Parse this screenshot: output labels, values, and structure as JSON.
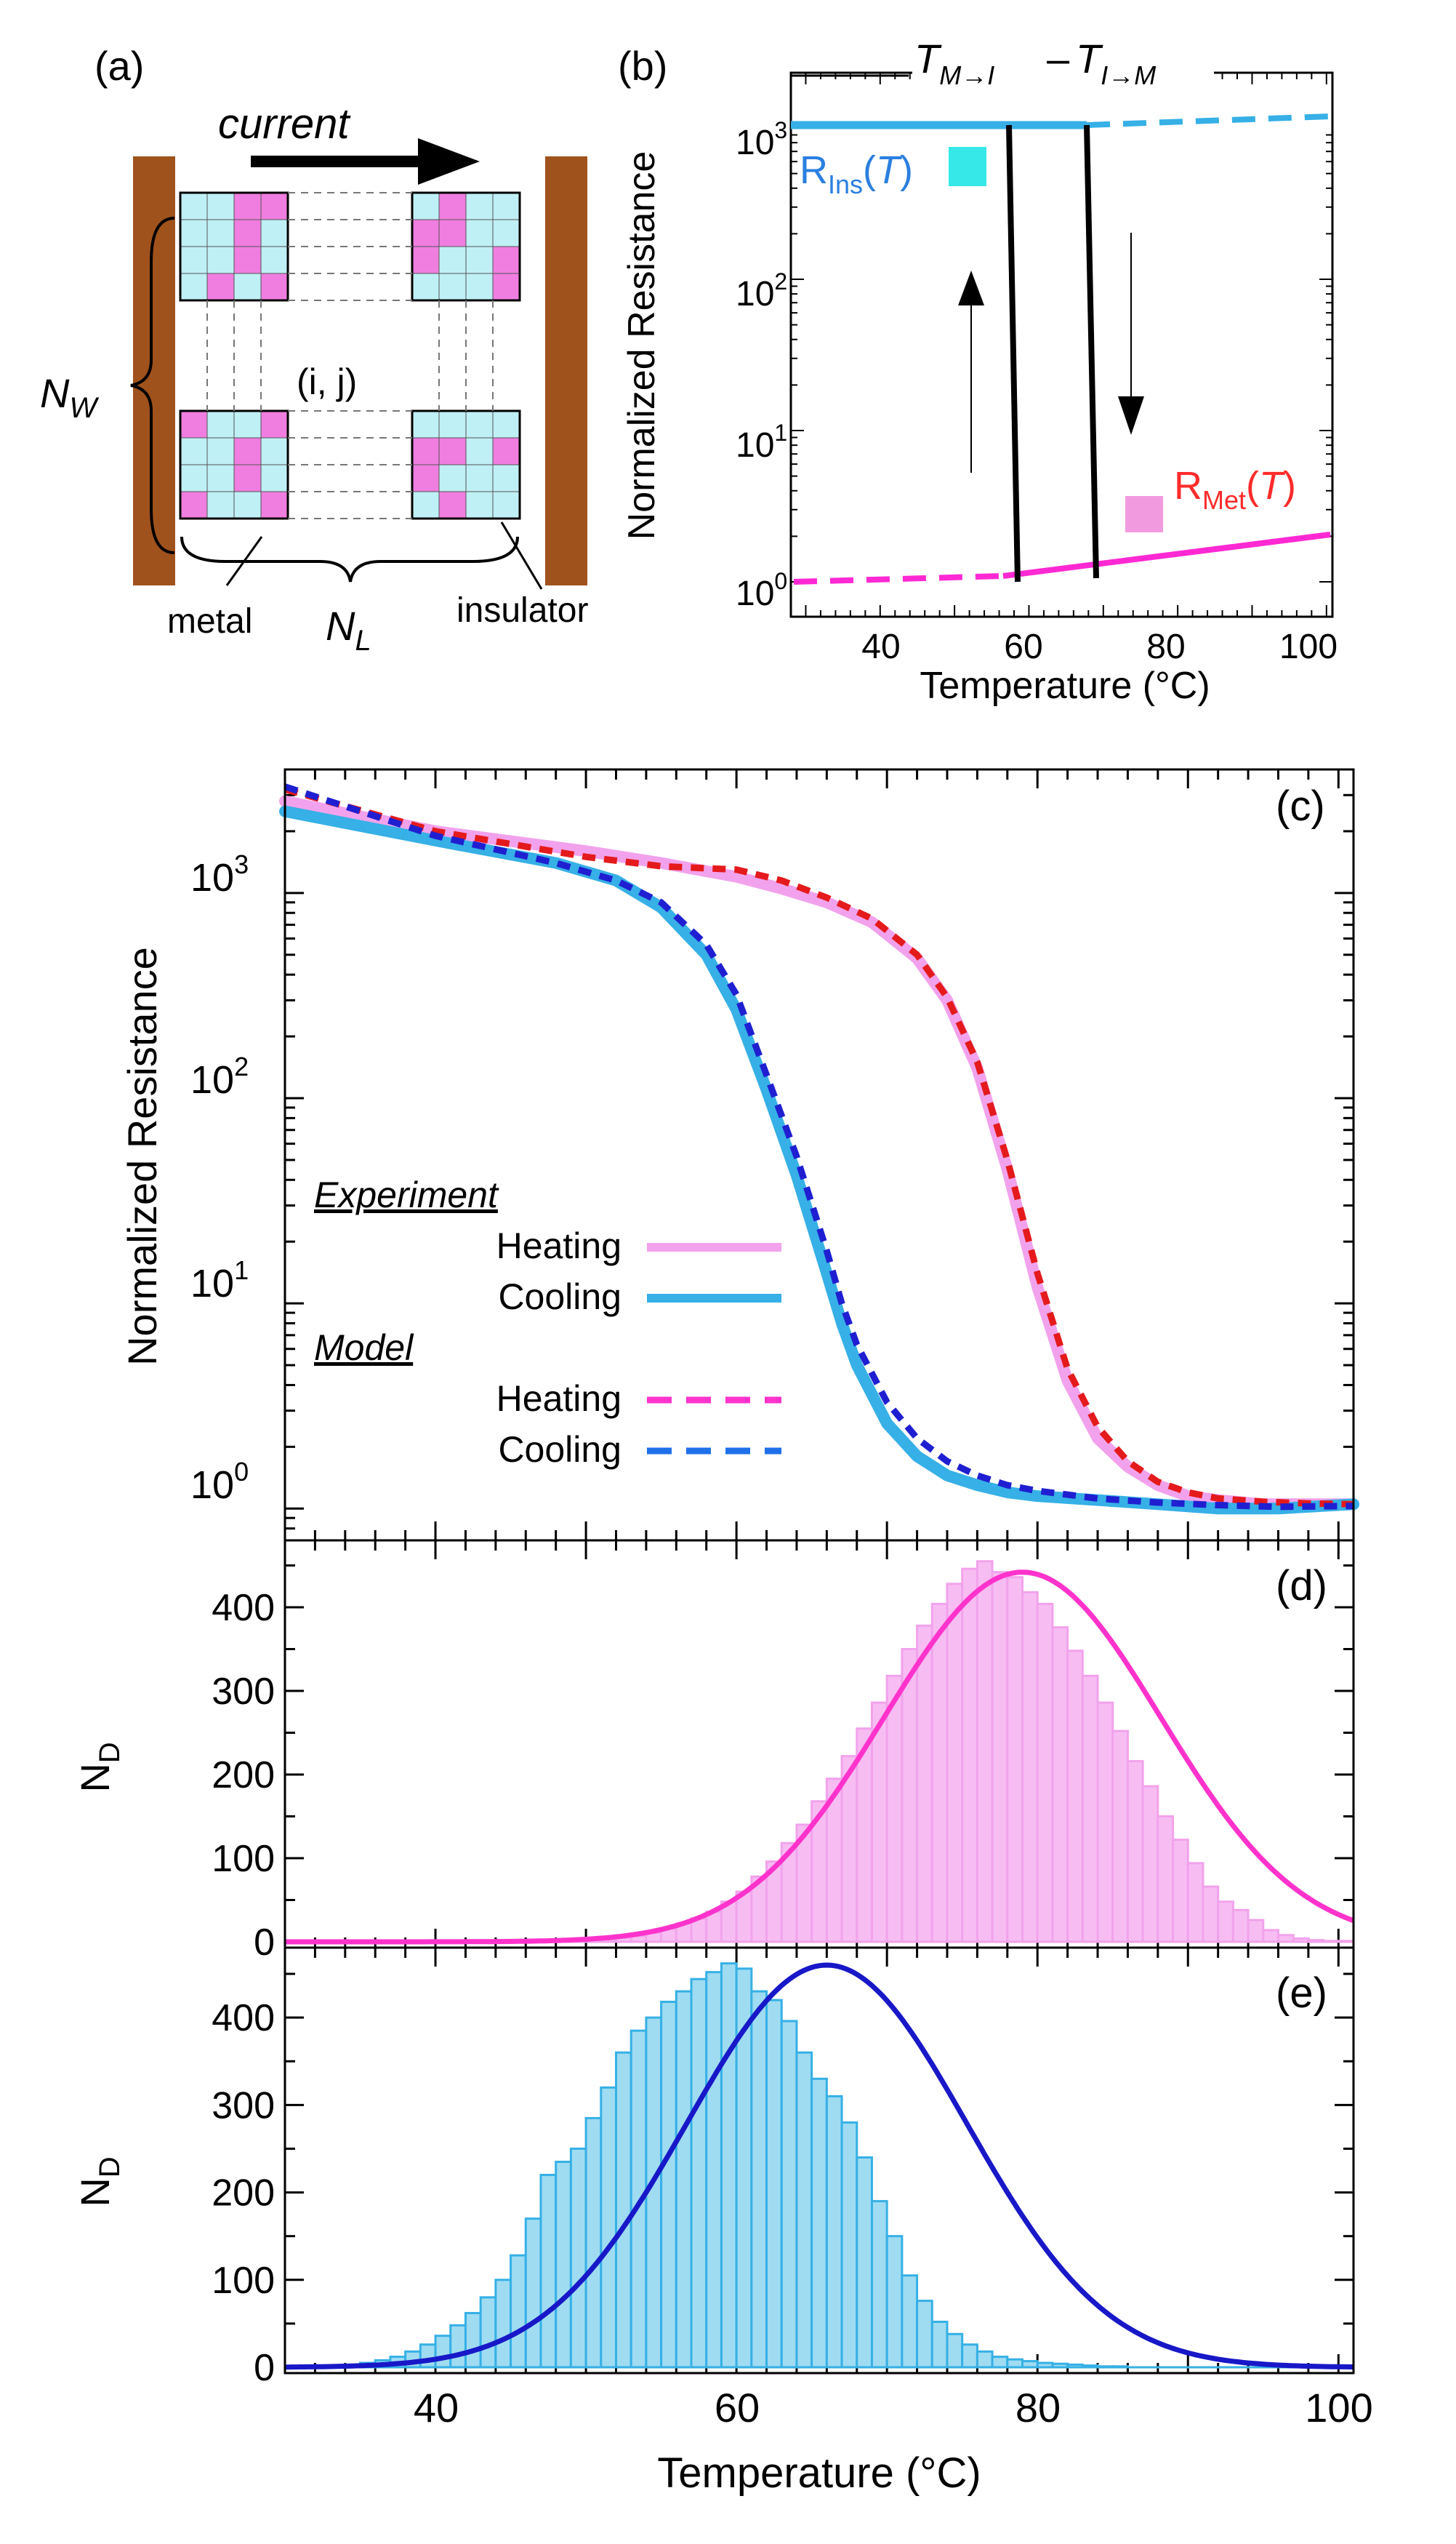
{
  "figure": {
    "colors": {
      "pink": "#f2a2ec",
      "pink_fill": "#f7bdf3",
      "magenta": "#ff33cc",
      "hot_pink": "#ff29d4",
      "red": "#e41a1c",
      "cyan": "#36b0e6",
      "cyan_fill": "#9fdcf2",
      "blue": "#1f1fd1",
      "dark_blue": "#1818c8",
      "cell_cyan": "#bff0f5",
      "cell_pink": "#f07ee0",
      "electrode": "#a0521d",
      "ins_label": "#2a7fe0",
      "met_label": "#ff2b2b"
    }
  },
  "panel_a": {
    "label": "(a)",
    "current": "current",
    "nw": "N",
    "nw_sub": "W",
    "nl": "N",
    "nl_sub": "L",
    "cell": "(i, j)",
    "metal": "metal",
    "insulator": "insulator"
  },
  "panel_b": {
    "label": "(b)",
    "ylabel": "Normalized Resistance",
    "xlabel": "Temperature (°C)",
    "xticks": [
      "40",
      "60",
      "80",
      "100"
    ],
    "yticks": [
      {
        "base": "10",
        "exp": "3"
      },
      {
        "base": "10",
        "exp": "2"
      },
      {
        "base": "10",
        "exp": "1"
      },
      {
        "base": "10",
        "exp": "0"
      }
    ],
    "t_mi": "T",
    "t_mi_sub": "M→I",
    "t_im": "T",
    "t_im_sub": "I→M",
    "dash_mid": "–",
    "r_ins": "R",
    "r_ins_sub": "Ins",
    "r_met": "R",
    "r_met_sub": "Met",
    "t_var": "T"
  },
  "chart_data": [
    {
      "type": "line",
      "id": "c",
      "title": "(c)",
      "xlabel": "",
      "ylabel": "Normalized Resistance",
      "yscale": "log",
      "xlim": [
        30,
        101
      ],
      "ylim": [
        0.7,
        4000
      ],
      "yticks": [
        {
          "base": "10",
          "exp": "3"
        },
        {
          "base": "10",
          "exp": "2"
        },
        {
          "base": "10",
          "exp": "1"
        },
        {
          "base": "10",
          "exp": "0"
        }
      ],
      "legend": {
        "experiment": "Experiment",
        "model": "Model",
        "heating": "Heating",
        "cooling": "Cooling"
      },
      "series": [
        {
          "name": "Experiment Heating",
          "style": "solid",
          "color": "#f2a2ec",
          "x": [
            30,
            40,
            50,
            55,
            60,
            63,
            66,
            69,
            72,
            74,
            76,
            78,
            80,
            82,
            84,
            86,
            88,
            90,
            92,
            95,
            98,
            101
          ],
          "y": [
            2800,
            2000,
            1600,
            1400,
            1200,
            1050,
            900,
            720,
            480,
            300,
            140,
            45,
            12,
            4.2,
            2.2,
            1.6,
            1.3,
            1.15,
            1.1,
            1.05,
            1.05,
            1.05
          ]
        },
        {
          "name": "Experiment Cooling",
          "style": "solid",
          "color": "#36b0e6",
          "x": [
            30,
            40,
            48,
            52,
            55,
            58,
            60,
            62,
            64,
            66,
            67,
            68,
            70,
            72,
            74,
            76,
            78,
            80,
            84,
            88,
            92,
            96,
            101
          ],
          "y": [
            2500,
            1800,
            1400,
            1150,
            850,
            500,
            270,
            110,
            42,
            14,
            8,
            5,
            2.6,
            1.8,
            1.45,
            1.3,
            1.2,
            1.15,
            1.1,
            1.05,
            1.0,
            1.0,
            1.05
          ]
        },
        {
          "name": "Model Heating",
          "style": "dash",
          "color": "#e41a1c",
          "x": [
            30,
            40,
            50,
            55,
            60,
            63,
            66,
            69,
            72,
            74,
            76,
            78,
            80,
            82,
            84,
            86,
            88,
            90,
            92,
            95,
            98,
            101
          ],
          "y": [
            3200,
            2000,
            1500,
            1350,
            1300,
            1150,
            950,
            750,
            500,
            310,
            150,
            50,
            14,
            4.8,
            2.5,
            1.7,
            1.35,
            1.2,
            1.12,
            1.08,
            1.06,
            1.05
          ]
        },
        {
          "name": "Model Cooling",
          "style": "dash",
          "color": "#1f1fd1",
          "x": [
            30,
            40,
            48,
            52,
            55,
            58,
            60,
            62,
            64,
            66,
            67,
            68,
            70,
            72,
            74,
            76,
            78,
            80,
            84,
            88,
            92,
            96,
            101
          ],
          "y": [
            3300,
            1900,
            1400,
            1150,
            900,
            560,
            320,
            130,
            52,
            18,
            10,
            6.3,
            3.3,
            2.2,
            1.7,
            1.45,
            1.3,
            1.22,
            1.12,
            1.07,
            1.04,
            1.02,
            1.03
          ]
        }
      ]
    },
    {
      "type": "bar",
      "id": "d",
      "title": "(d)",
      "ylabel": "N",
      "ylabel_sub": "D",
      "xlim": [
        30,
        101
      ],
      "ylim": [
        0,
        480
      ],
      "yticks": [
        "0",
        "100",
        "200",
        "300",
        "400"
      ],
      "bin_start": 30,
      "bin_width": 1,
      "values": [
        0,
        0,
        0,
        0,
        0,
        0,
        0,
        0,
        0,
        0,
        0,
        0,
        0,
        0,
        0,
        0,
        0,
        0,
        0,
        0,
        2,
        3,
        5,
        7,
        11,
        16,
        22,
        28,
        36,
        48,
        60,
        78,
        96,
        118,
        140,
        168,
        195,
        222,
        255,
        286,
        318,
        350,
        378,
        404,
        428,
        446,
        455,
        442,
        436,
        418,
        404,
        376,
        348,
        318,
        286,
        252,
        216,
        186,
        150,
        122,
        94,
        66,
        48,
        38,
        26,
        14,
        8,
        4,
        2,
        1,
        1
      ],
      "fit": {
        "mu": 79,
        "sigma": 9.2,
        "amp": 442,
        "color": "#ff33cc"
      }
    },
    {
      "type": "bar",
      "id": "e",
      "title": "(e)",
      "ylabel": "N",
      "ylabel_sub": "D",
      "xlabel": "Temperature (°C)",
      "xlim": [
        30,
        101
      ],
      "ylim": [
        0,
        480
      ],
      "xticks": [
        "40",
        "60",
        "80",
        "100"
      ],
      "yticks": [
        "0",
        "100",
        "200",
        "300",
        "400"
      ],
      "bin_start": 30,
      "bin_width": 1,
      "values": [
        0,
        0,
        1,
        2,
        3,
        5,
        8,
        12,
        18,
        26,
        36,
        48,
        62,
        80,
        100,
        128,
        170,
        220,
        235,
        250,
        285,
        320,
        360,
        385,
        400,
        418,
        430,
        444,
        452,
        462,
        456,
        430,
        420,
        396,
        360,
        330,
        310,
        280,
        240,
        190,
        150,
        105,
        76,
        52,
        38,
        26,
        18,
        12,
        9,
        7,
        5,
        4,
        3,
        2,
        1,
        1,
        0,
        0,
        0,
        0,
        0,
        0,
        0,
        0,
        0,
        0,
        0,
        0,
        0,
        0,
        0
      ],
      "fit": {
        "mu": 66,
        "sigma": 9.3,
        "amp": 460,
        "color": "#1818c8"
      }
    }
  ]
}
